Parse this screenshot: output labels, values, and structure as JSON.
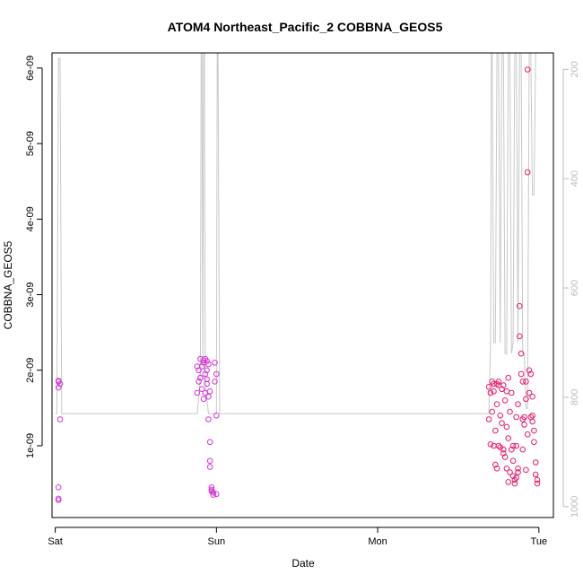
{
  "chart_data": {
    "type": "scatter",
    "title": "ATOM4 Northeast_Pacific_2 COBBNA_GEOS5",
    "xlabel": "Date",
    "ylabel": "COBBNA_GEOS5",
    "x_ticks": [
      "Sat",
      "Sun",
      "Mon",
      "Tue"
    ],
    "xlim": [
      -0.02,
      3.09
    ],
    "ylim": [
      5e-11,
      6.2e-09
    ],
    "y_ticks": [
      1e-09,
      2e-09,
      3e-09,
      4e-09,
      5e-09,
      6e-09
    ],
    "y_tick_labels": [
      "1e-09",
      "2e-09",
      "3e-09",
      "4e-09",
      "5e-09",
      "6e-09"
    ],
    "y2_lim": [
      1020,
      170
    ],
    "y2_ticks": [
      200,
      400,
      600,
      800,
      1000
    ],
    "y2_tick_labels": [
      "200",
      "400",
      "600",
      "800",
      "1000"
    ],
    "grid": false,
    "colors": {
      "points_early": "#d633d6",
      "points_late": "#e8196e",
      "line": "#c8c8c8",
      "axis": "#000000",
      "right_axis": "#bbbbbb"
    },
    "series": [
      {
        "x": [
          0.02,
          0.02,
          0.02,
          0.03,
          0.03,
          0.02,
          0.02,
          0.02,
          0.88,
          0.89,
          0.89,
          0.9,
          0.9,
          0.91,
          0.91,
          0.92,
          0.92,
          0.93,
          0.93,
          0.93,
          0.94,
          0.94,
          0.94,
          0.95,
          0.95,
          0.95,
          0.96,
          0.96,
          0.96,
          0.97,
          0.97,
          0.97,
          0.98,
          0.98,
          0.99,
          0.99,
          1.0,
          1.0,
          1.0,
          0.88,
          0.9,
          0.92,
          0.94,
          0.96
        ],
        "y": [
          2.8e-10,
          3e-10,
          4.5e-10,
          1.35e-09,
          1.82e-09,
          1.77e-09,
          1.85e-09,
          1.86e-09,
          1.7e-09,
          1.85e-09,
          2e-09,
          2.15e-09,
          1.9e-09,
          1.75e-09,
          2.05e-09,
          2.1e-09,
          1.62e-09,
          1.7e-09,
          2.15e-09,
          1.95e-09,
          2.12e-09,
          2e-09,
          1.82e-09,
          2.08e-09,
          1.65e-09,
          1.35e-09,
          1.05e-09,
          8e-10,
          7.2e-10,
          4.5e-10,
          4.2e-10,
          4e-10,
          3.8e-10,
          3.5e-10,
          1.85e-09,
          2.1e-09,
          1.95e-09,
          1.4e-09,
          3.6e-10,
          2.05e-09,
          1.9e-09,
          2.13e-09,
          1.88e-09,
          1.72e-09
        ]
      },
      {
        "x": [
          2.69,
          2.69,
          2.7,
          2.7,
          2.71,
          2.71,
          2.72,
          2.72,
          2.73,
          2.73,
          2.74,
          2.74,
          2.75,
          2.75,
          2.76,
          2.76,
          2.77,
          2.77,
          2.78,
          2.78,
          2.79,
          2.79,
          2.8,
          2.8,
          2.81,
          2.81,
          2.82,
          2.82,
          2.83,
          2.83,
          2.84,
          2.84,
          2.85,
          2.85,
          2.86,
          2.86,
          2.87,
          2.87,
          2.88,
          2.88,
          2.89,
          2.89,
          2.9,
          2.9,
          2.91,
          2.91,
          2.92,
          2.92,
          2.93,
          2.93,
          2.94,
          2.94,
          2.95,
          2.95,
          2.96,
          2.96,
          2.97,
          2.97,
          2.98,
          2.98,
          2.99,
          2.99,
          2.72,
          2.75,
          2.78,
          2.81,
          2.84,
          2.87,
          2.9,
          2.93,
          2.96,
          2.74,
          2.8,
          2.86,
          2.92
        ],
        "y": [
          1.78e-09,
          1.35e-09,
          1.02e-09,
          1.7e-09,
          1.85e-09,
          1.45e-09,
          1e-09,
          1.82e-09,
          1.2e-09,
          7.5e-10,
          7e-10,
          1.55e-09,
          1.8e-09,
          1e-09,
          1.4e-09,
          9.8e-10,
          1.75e-09,
          1.3e-09,
          9.5e-10,
          9e-10,
          8.5e-10,
          1.6e-09,
          1.25e-09,
          7e-10,
          5.2e-10,
          1.1e-09,
          6.5e-10,
          1.45e-09,
          9.5e-10,
          1.7e-09,
          6e-10,
          1e-09,
          5.5e-10,
          5e-10,
          5.8e-10,
          1.38e-09,
          6.5e-10,
          1.55e-09,
          2.85e-09,
          2.45e-09,
          2.22e-09,
          1.95e-09,
          1.85e-09,
          1.35e-09,
          1.38e-09,
          1.28e-09,
          1.62e-09,
          1.85e-09,
          5.98e-09,
          4.62e-09,
          1.7e-09,
          2e-09,
          1.95e-09,
          1.38e-09,
          1.32e-09,
          1.65e-09,
          1.2e-09,
          1.05e-09,
          7.8e-10,
          6.2e-10,
          5.5e-10,
          5e-10,
          1.72e-09,
          1.85e-09,
          1.8e-09,
          1.9e-09,
          8e-10,
          7e-10,
          9.5e-10,
          1.15e-09,
          1.4e-09,
          1.82e-09,
          1.72e-09,
          1e-09,
          6.8e-10
        ]
      }
    ],
    "pressure_line": {
      "x": [
        0.0,
        0.01,
        0.02,
        0.03,
        0.04,
        0.05,
        0.88,
        0.89,
        0.9,
        0.905,
        0.91,
        0.915,
        0.92,
        0.925,
        0.93,
        0.94,
        0.95,
        0.96,
        0.97,
        0.98,
        0.99,
        1.0,
        1.005,
        1.01,
        1.02,
        1.03,
        2.69,
        2.7,
        2.705,
        2.71,
        2.72,
        2.73,
        2.74,
        2.75,
        2.76,
        2.77,
        2.78,
        2.79,
        2.8,
        2.81,
        2.82,
        2.83,
        2.84,
        2.85,
        2.86,
        2.87,
        2.88,
        2.89,
        2.9,
        2.91,
        2.92,
        2.93,
        2.94,
        2.95,
        2.96,
        2.97,
        2.98,
        2.99,
        3.0
      ],
      "y": [
        830,
        830,
        180,
        180,
        830,
        830,
        830,
        800,
        760,
        170,
        170,
        740,
        170,
        170,
        760,
        800,
        830,
        830,
        830,
        830,
        830,
        830,
        170,
        170,
        830,
        830,
        830,
        700,
        170,
        170,
        700,
        700,
        170,
        170,
        700,
        170,
        170,
        720,
        720,
        170,
        170,
        720,
        700,
        170,
        170,
        700,
        170,
        170,
        720,
        720,
        820,
        820,
        170,
        170,
        430,
        430,
        170,
        170,
        170
      ]
    }
  }
}
